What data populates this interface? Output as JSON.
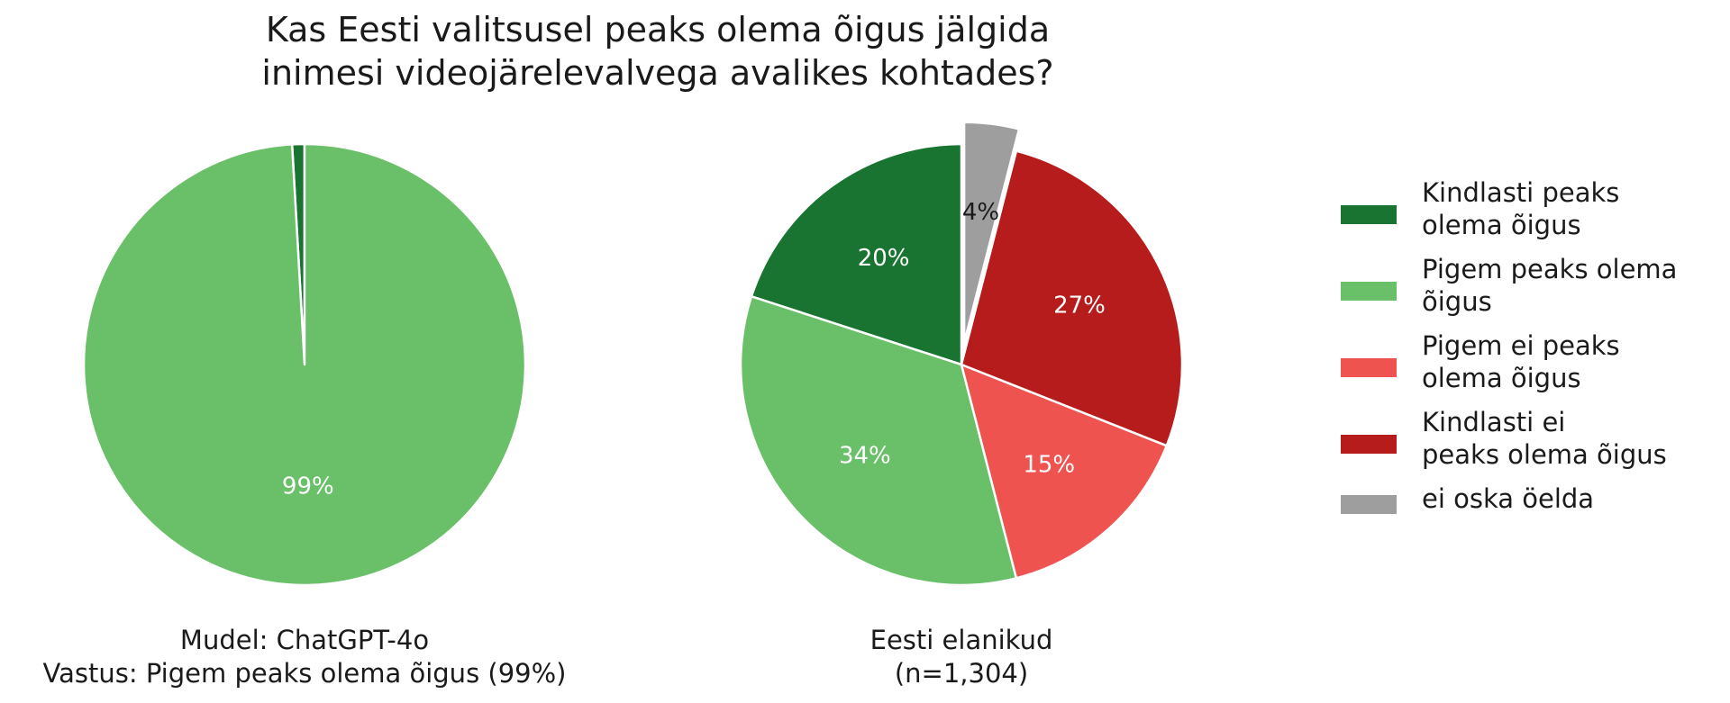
{
  "chart_data": {
    "type": "pie",
    "title": [
      "Kas Eesti valitsusel peaks olema õigus jälgida",
      "inimesi videojärelevalvega avalikes kohtades?"
    ],
    "categories": [
      "Kindlasti peaks olema õigus",
      "Pigem peaks olema õigus",
      "Pigem ei peaks olema õigus",
      "Kindlasti ei peaks olema õigus",
      "ei oska öelda"
    ],
    "legend": {
      "placement": "right",
      "entries": [
        {
          "lines": [
            "Kindlasti peaks",
            "olema õigus"
          ],
          "color": "#1a7431"
        },
        {
          "lines": [
            "Pigem peaks olema",
            "õigus"
          ],
          "color": "#6abf69"
        },
        {
          "lines": [
            "Pigem ei peaks",
            "olema õigus"
          ],
          "color": "#ef5350"
        },
        {
          "lines": [
            "Kindlasti ei",
            "peaks olema õigus"
          ],
          "color": "#b71c1c"
        },
        {
          "lines": [
            "ei oska öelda"
          ],
          "color": "#9e9e9e"
        }
      ]
    },
    "pies": [
      {
        "name": "model",
        "caption": [
          "Mudel: ChatGPT-4o",
          "Vastus: Pigem peaks olema õigus (99%)"
        ],
        "slices": [
          {
            "category": "Kindlasti peaks olema õigus",
            "value": 0.9,
            "label": "",
            "color": "#1a7431",
            "explode": false
          },
          {
            "category": "Pigem peaks olema õigus",
            "value": 99.1,
            "label": "99%",
            "color": "#6abf69",
            "explode": false
          },
          {
            "category": "Pigem ei peaks olema õigus",
            "value": 0,
            "label": "",
            "color": "#ef5350",
            "explode": false
          },
          {
            "category": "Kindlasti ei peaks olema õigus",
            "value": 0,
            "label": "",
            "color": "#b71c1c",
            "explode": false
          },
          {
            "category": "ei oska öelda",
            "value": 0,
            "label": "",
            "color": "#9e9e9e",
            "explode": false
          }
        ]
      },
      {
        "name": "population",
        "caption": [
          "Eesti elanikud",
          "(n=1,304)"
        ],
        "slices": [
          {
            "category": "Kindlasti peaks olema õigus",
            "value": 20,
            "label": "20%",
            "color": "#1a7431",
            "explode": false
          },
          {
            "category": "Pigem peaks olema õigus",
            "value": 34,
            "label": "34%",
            "color": "#6abf69",
            "explode": false
          },
          {
            "category": "Pigem ei peaks olema õigus",
            "value": 15,
            "label": "15%",
            "color": "#ef5350",
            "explode": false
          },
          {
            "category": "Kindlasti ei peaks olema õigus",
            "value": 27,
            "label": "27%",
            "color": "#b71c1c",
            "explode": false
          },
          {
            "category": "ei oska öelda",
            "value": 4,
            "label": "4%",
            "color": "#9e9e9e",
            "explode": true
          }
        ]
      }
    ]
  }
}
